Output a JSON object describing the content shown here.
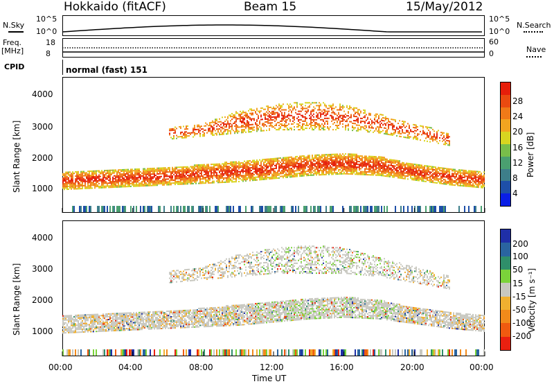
{
  "header": {
    "station": "Hokkaido (fitACF)",
    "beam": "Beam 15",
    "date": "15/May/2012"
  },
  "strip": {
    "nsky_label": "N.Sky",
    "nsearch_label": "N.Search",
    "left_ticks_top": "10^5",
    "left_ticks_bottom": "10^0",
    "right_ticks_top": "10^5",
    "right_ticks_bottom": "10^0",
    "freq_label": "Freq.",
    "freq_unit": "[MHz]",
    "freq_ticks": [
      "18",
      "8"
    ],
    "nave_label": "Nave",
    "nave_ticks": [
      "60",
      "0"
    ],
    "cpid_label": "CPID",
    "cpid_text": "normal (fast) 151"
  },
  "power_panel": {
    "ylabel": "Slant Range [km]",
    "yticks": [
      "4000",
      "3000",
      "2000",
      "1000"
    ],
    "cbar_label": "Power [dB]",
    "cbar_ticks": [
      "28",
      "24",
      "20",
      "16",
      "12",
      "8",
      "4"
    ],
    "cbar_colors": [
      "#0a1ee6",
      "#1e4fa8",
      "#3d7e8a",
      "#4aa070",
      "#78be4a",
      "#d8d520",
      "#f2a520",
      "#f07a18",
      "#ea4a10",
      "#e61e0a"
    ]
  },
  "velocity_panel": {
    "ylabel": "Slant Range [km]",
    "yticks": [
      "4000",
      "3000",
      "2000",
      "1000"
    ],
    "cbar_label": "Velocity [m s⁻¹]",
    "cbar_ticks": [
      "200",
      "100",
      "50",
      "15",
      "-15",
      "-50",
      "-100",
      "-200"
    ],
    "cbar_colors": [
      "#1f2fa8",
      "#2a64a0",
      "#2f8f6a",
      "#7bd33a",
      "#c8c8c0",
      "#f0b030",
      "#f28a1a",
      "#f05a10",
      "#ea2010"
    ]
  },
  "xaxis": {
    "xlabel": "Time UT",
    "xticks": [
      "00:00",
      "04:00",
      "08:00",
      "12:00",
      "16:00",
      "20:00",
      "00:00"
    ]
  },
  "chart_data": [
    {
      "type": "heatmap",
      "title": "Power",
      "xlabel": "Time UT",
      "ylabel": "Slant Range [km]",
      "x_range_hours": [
        0,
        24
      ],
      "ylim": [
        180,
        4500
      ],
      "colorbar_label": "Power [dB]",
      "colorbar_range": [
        0,
        30
      ],
      "bands": [
        {
          "name": "main",
          "t": [
            0,
            2,
            4,
            6,
            8,
            10,
            12,
            14,
            16,
            18,
            20,
            22,
            24
          ],
          "r_low": [
            900,
            950,
            1000,
            1050,
            1100,
            1150,
            1250,
            1350,
            1400,
            1350,
            1200,
            1050,
            950
          ],
          "r_high": [
            1450,
            1500,
            1550,
            1600,
            1700,
            1800,
            1900,
            2000,
            2050,
            1950,
            1700,
            1550,
            1450
          ],
          "mean_db": 20
        },
        {
          "name": "upper",
          "t": [
            6,
            8,
            10,
            12,
            14,
            16,
            18,
            20,
            22
          ],
          "r_low": [
            2500,
            2600,
            2700,
            2800,
            2800,
            2800,
            2700,
            2500,
            2300
          ],
          "r_high": [
            2900,
            3000,
            3400,
            3600,
            3700,
            3600,
            3300,
            3000,
            2700
          ],
          "mean_db": 22
        }
      ]
    },
    {
      "type": "heatmap",
      "title": "Velocity",
      "xlabel": "Time UT",
      "ylabel": "Slant Range [km]",
      "x_range_hours": [
        0,
        24
      ],
      "ylim": [
        180,
        4500
      ],
      "colorbar_label": "Velocity [m s⁻¹]",
      "colorbar_range": [
        -200,
        200
      ],
      "dominant_value": "ground scatter (-15 to 15)"
    }
  ]
}
